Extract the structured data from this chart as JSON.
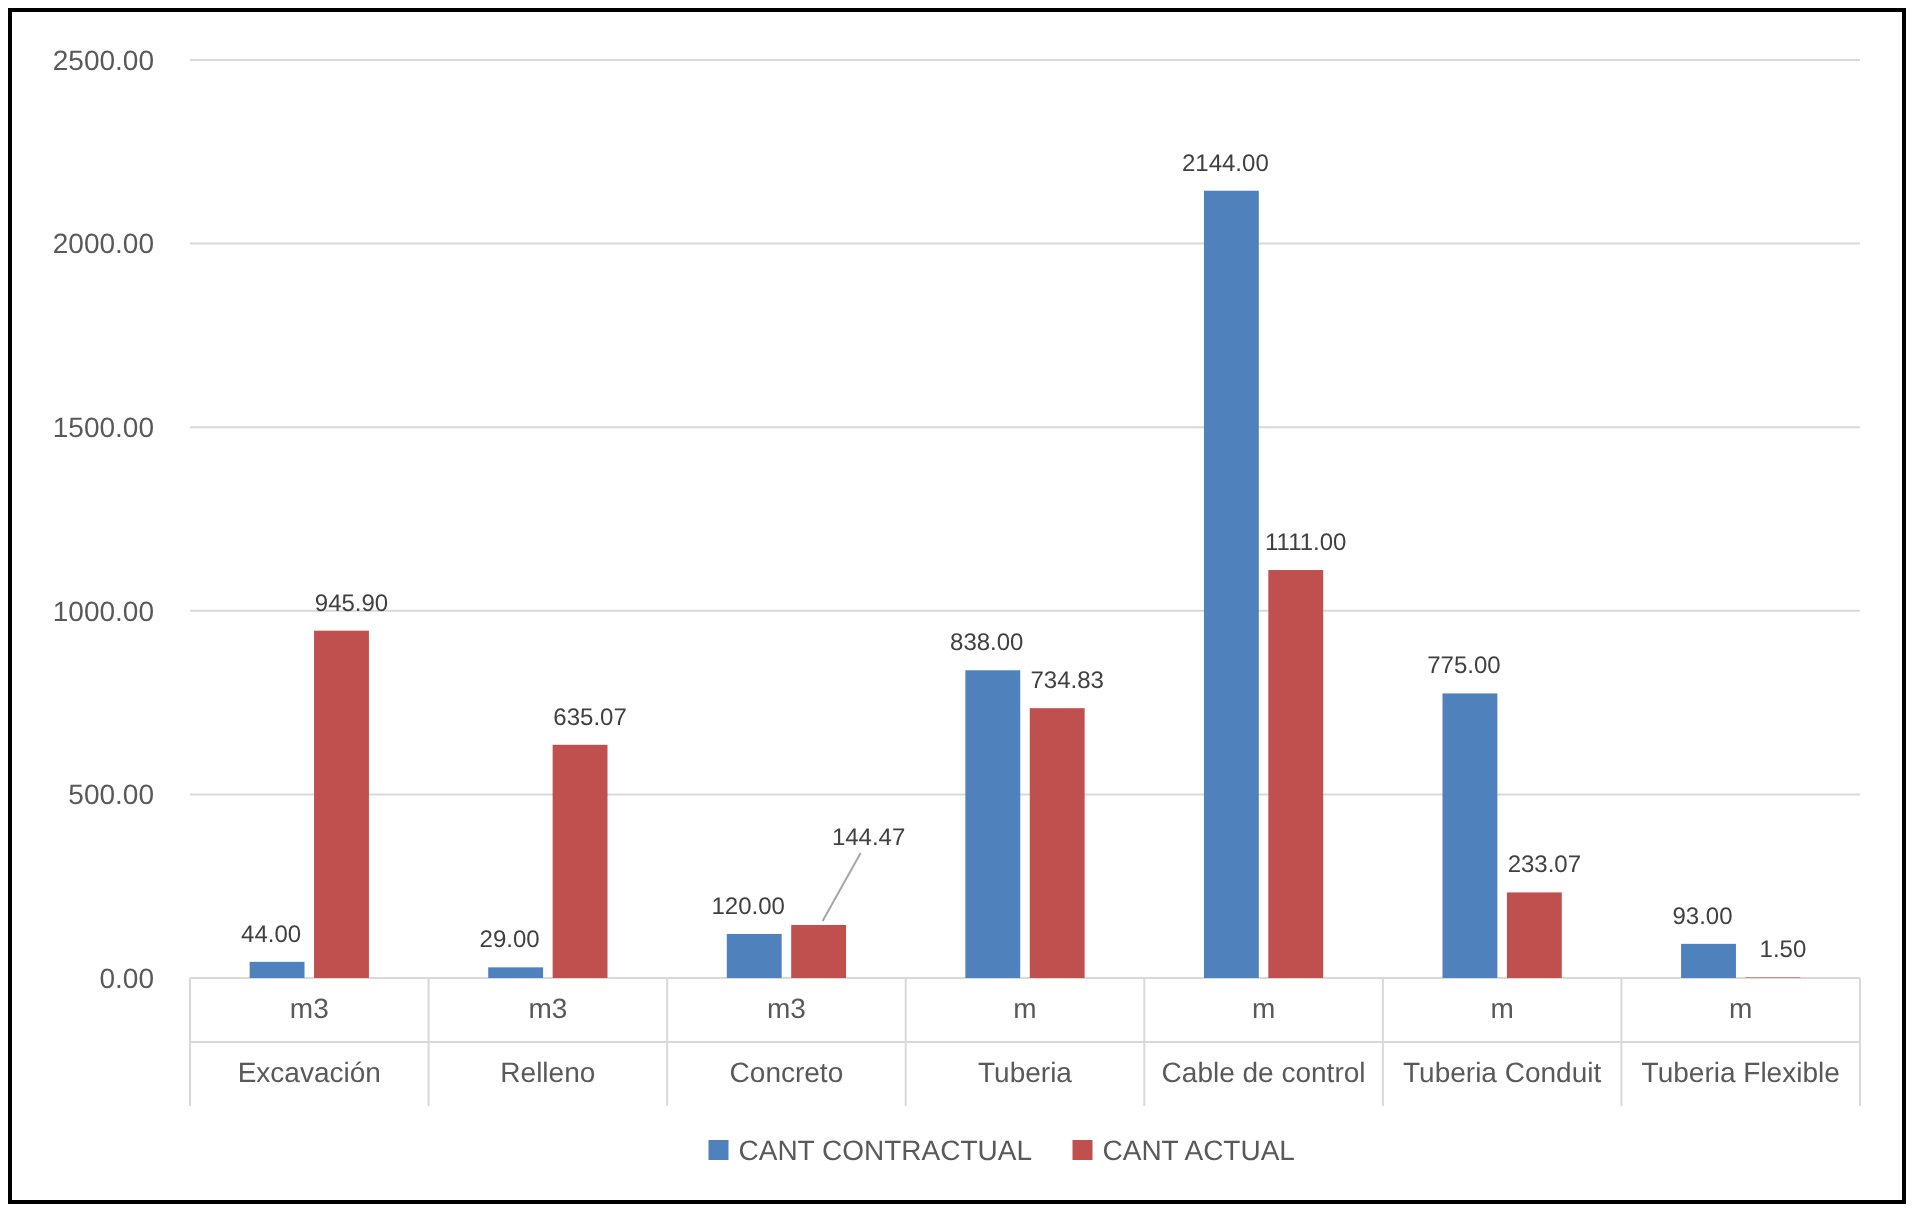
{
  "chart_data": {
    "type": "bar",
    "categories": [
      "m3\nExcavación",
      "m3\nRelleno",
      "m3\nConcreto",
      "m\nTuberia",
      "m\nCable de control",
      "m\nTuberia Conduit",
      "m\nTuberia Flexible"
    ],
    "series": [
      {
        "name": "CANT CONTRACTUAL",
        "color": "#4f81bd",
        "values": [
          44,
          29,
          120,
          838,
          2144,
          775,
          93
        ],
        "value_labels": [
          "44.00",
          "29.00",
          "120.00",
          "838.00",
          "2144.00",
          "775.00",
          "93.00"
        ]
      },
      {
        "name": "CANT ACTUAL",
        "color": "#c0504d",
        "values": [
          945.9,
          635.07,
          144.47,
          734.83,
          1111,
          233.07,
          1.5
        ],
        "value_labels": [
          "945.90",
          "635.07",
          "144.47",
          "734.83",
          "1111.00",
          "233.07",
          "1.50"
        ]
      }
    ],
    "ylim": [
      0,
      2500
    ],
    "yticks": [
      {
        "value": 0,
        "label": "0.00"
      },
      {
        "value": 500,
        "label": "500.00"
      },
      {
        "value": 1000,
        "label": "1000.00"
      },
      {
        "value": 1500,
        "label": "1500.00"
      },
      {
        "value": 2000,
        "label": "2000.00"
      },
      {
        "value": 2500,
        "label": "2500.00"
      }
    ],
    "grid": "y",
    "legend": "bottom"
  }
}
